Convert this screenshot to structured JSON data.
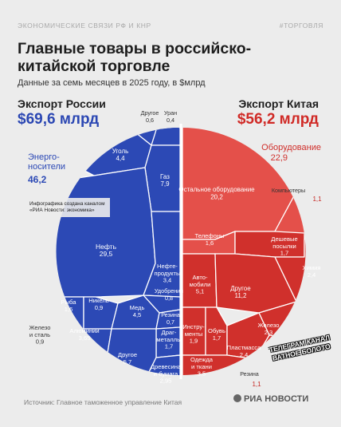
{
  "header": {
    "left": "ЭКОНОМИЧЕСКИЕ СВЯЗИ РФ И КНР",
    "right": "#ТОРГОВЛЯ"
  },
  "title": "Главные товары в российско-китайской торговле",
  "subtitle": "Данные за семь месяцев в 2025 году, в $млрд",
  "export_ru": {
    "label": "Экспорт России",
    "value": "$69,6 млрд"
  },
  "export_cn": {
    "label": "Экспорт Китая",
    "value": "$56,2 млрд"
  },
  "infographic_note": "Инфографика создана каналом «РИА Новости: экономика»",
  "watermark": "ТЕЛЕГРАМ КАНАЛ ВАТНОЕ БОЛОТО",
  "source": "Источник: Главное таможенное управление Китая",
  "logo": "РИА НОВОСТИ",
  "colors": {
    "russia": "#2c49b5",
    "china": "#d0302c",
    "china_group": "#e4504a",
    "border": "#ffffff"
  },
  "chart_data": {
    "type": "voronoi-treemap",
    "title": "Главные товары в российско-китайской торговле",
    "series": [
      {
        "name": "Экспорт России",
        "total": 69.6,
        "groups": [
          {
            "name": "Энерго­носители",
            "value": 46.2,
            "items": [
              {
                "label": "Другое",
                "value": 0.6,
                "value_text": "0,6"
              },
              {
                "label": "Уран",
                "value": 0.4,
                "value_text": "0,4"
              },
              {
                "label": "Уголь",
                "value": 4.4,
                "value_text": "4,4"
              },
              {
                "label": "Газ",
                "value": 7.9,
                "value_text": "7,9"
              },
              {
                "label": "Нефть",
                "value": 29.5,
                "value_text": "29,5"
              },
              {
                "label": "Нефте­продукты",
                "value": 3.4,
                "value_text": "3,4"
              }
            ]
          },
          {
            "name": "",
            "value": null,
            "items": [
              {
                "label": "Удобрения",
                "value": 0.8,
                "value_text": "0,8"
              },
              {
                "label": "Рыба",
                "value": 1.6,
                "value_text": "1,6"
              },
              {
                "label": "Никель",
                "value": 0.9,
                "value_text": "0,9"
              },
              {
                "label": "Медь",
                "value": 4.5,
                "value_text": "4,5"
              },
              {
                "label": "Резина",
                "value": 0.7,
                "value_text": "0,7"
              },
              {
                "label": "Железо и сталь",
                "value": 0.9,
                "value_text": "0,9"
              },
              {
                "label": "Алюминий",
                "value": 3.65,
                "value_text": "3,65"
              },
              {
                "label": "Драг­металлы",
                "value": 1.7,
                "value_text": "1,7"
              },
              {
                "label": "Другое",
                "value": 5.7,
                "value_text": "5,7"
              },
              {
                "label": "Древесина и бумага",
                "value": 2.95,
                "value_text": "2,95"
              }
            ]
          }
        ]
      },
      {
        "name": "Экспорт Китая",
        "total": 56.2,
        "groups": [
          {
            "name": "Оборудование",
            "value": 22.9,
            "items": [
              {
                "label": "Остальное оборудование",
                "value": 20.2,
                "value_text": "20,2"
              },
              {
                "label": "Компьютеры",
                "value": 1.1,
                "value_text": "1,1"
              },
              {
                "label": "Телефоны",
                "value": 1.6,
                "value_text": "1,6"
              }
            ]
          },
          {
            "name": "",
            "value": null,
            "items": [
              {
                "label": "Дешевые посылки",
                "value": 1.7,
                "value_text": "1,7"
              },
              {
                "label": "Химия",
                "value": 2.4,
                "value_text": "2,4"
              },
              {
                "label": "Авто­мобили",
                "value": 5.1,
                "value_text": "5,1"
              },
              {
                "label": "Другое",
                "value": 11.2,
                "value_text": "11,2"
              },
              {
                "label": "Инстру­менты",
                "value": 1.9,
                "value_text": "1,9"
              },
              {
                "label": "Обувь",
                "value": 1.7,
                "value_text": "1,7"
              },
              {
                "label": "Железо",
                "value": 2.3,
                "value_text": "2,3"
              },
              {
                "label": "Пластмасса",
                "value": 2.4,
                "value_text": "2,4"
              },
              {
                "label": "Одежда и ткани",
                "value": 3.5,
                "value_text": "3,5"
              },
              {
                "label": "Резина",
                "value": 1.1,
                "value_text": "1,1"
              }
            ]
          }
        ]
      }
    ],
    "labels": {
      "energy_group": "Энерго-\nносители",
      "energy_value": "46,2",
      "equipment_group": "Оборудование",
      "equipment_value": "22,9"
    }
  }
}
